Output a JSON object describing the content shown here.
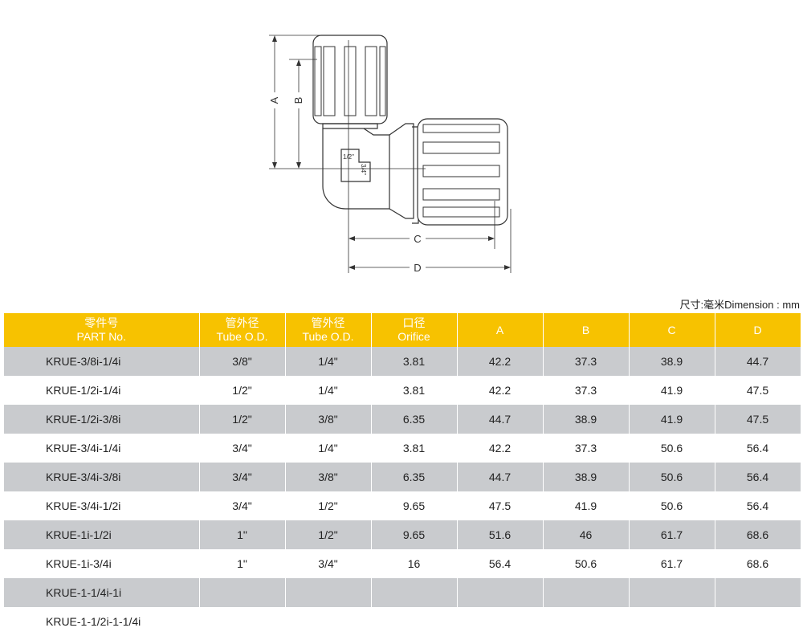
{
  "drawing": {
    "labels": {
      "a": "A",
      "b": "B",
      "c": "C",
      "d": "D",
      "port1": "1/2\"",
      "port2": "3/4\""
    }
  },
  "unit_note": "尺寸:毫米Dimension : mm",
  "table": {
    "headers": [
      {
        "cn": "零件号",
        "en": "PART No."
      },
      {
        "cn": "管外径",
        "en": "Tube O.D."
      },
      {
        "cn": "管外径",
        "en": "Tube O.D."
      },
      {
        "cn": "口径",
        "en": "Orifice"
      },
      {
        "cn": "",
        "en": "A"
      },
      {
        "cn": "",
        "en": "B"
      },
      {
        "cn": "",
        "en": "C"
      },
      {
        "cn": "",
        "en": "D"
      }
    ],
    "rows": [
      [
        "KRUE-3/8i-1/4i",
        "3/8\"",
        "1/4\"",
        "3.81",
        "42.2",
        "37.3",
        "38.9",
        "44.7"
      ],
      [
        "KRUE-1/2i-1/4i",
        "1/2\"",
        "1/4\"",
        "3.81",
        "42.2",
        "37.3",
        "41.9",
        "47.5"
      ],
      [
        "KRUE-1/2i-3/8i",
        "1/2\"",
        "3/8\"",
        "6.35",
        "44.7",
        "38.9",
        "41.9",
        "47.5"
      ],
      [
        "KRUE-3/4i-1/4i",
        "3/4\"",
        "1/4\"",
        "3.81",
        "42.2",
        "37.3",
        "50.6",
        "56.4"
      ],
      [
        "KRUE-3/4i-3/8i",
        "3/4\"",
        "3/8\"",
        "6.35",
        "44.7",
        "38.9",
        "50.6",
        "56.4"
      ],
      [
        "KRUE-3/4i-1/2i",
        "3/4\"",
        "1/2\"",
        "9.65",
        "47.5",
        "41.9",
        "50.6",
        "56.4"
      ],
      [
        "KRUE-1i-1/2i",
        "1\"",
        "1/2\"",
        "9.65",
        "51.6",
        "46",
        "61.7",
        "68.6"
      ],
      [
        "KRUE-1i-3/4i",
        "1\"",
        "3/4\"",
        "16",
        "56.4",
        "50.6",
        "61.7",
        "68.6"
      ],
      [
        "KRUE-1-1/4i-1i",
        "",
        "",
        "",
        "",
        "",
        "",
        ""
      ],
      [
        "KRUE-1-1/2i-1-1/4i",
        "",
        "",
        "",
        "",
        "",
        "",
        ""
      ]
    ]
  }
}
